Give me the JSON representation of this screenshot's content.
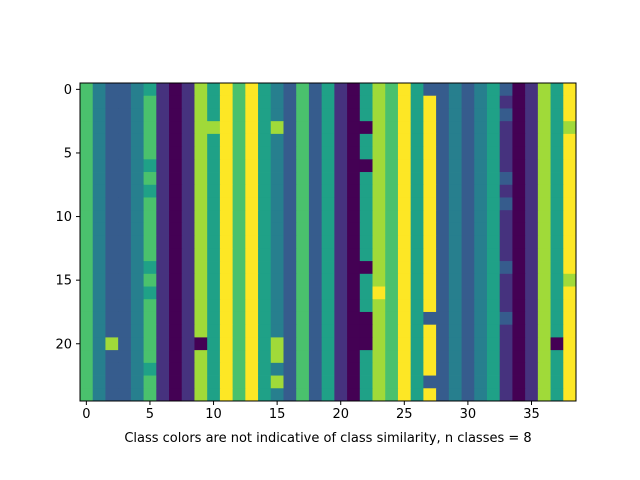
{
  "chart_data": {
    "type": "heatmap",
    "title": "",
    "xlabel": "Class colors are not indicative of class similarity, n classes = 8",
    "ylabel": "",
    "n_rows": 25,
    "n_cols": 39,
    "xlim": [
      -0.5,
      38.5
    ],
    "ylim": [
      24.5,
      -0.5
    ],
    "x_ticks": [
      0,
      5,
      10,
      15,
      20,
      25,
      30,
      35
    ],
    "y_ticks": [
      0,
      5,
      10,
      15,
      20
    ],
    "grid": false,
    "legend": "none",
    "palette": [
      "#440154",
      "#46327e",
      "#365c8d",
      "#277f8e",
      "#1fa187",
      "#4ac16d",
      "#a0da39",
      "#fde725"
    ],
    "base_columns": [
      5,
      3,
      2,
      2,
      3,
      5,
      1,
      0,
      1,
      6,
      4,
      7,
      5,
      7,
      4,
      3,
      2,
      5,
      2,
      4,
      1,
      0,
      4,
      6,
      5,
      7,
      4,
      7,
      2,
      3,
      2,
      3,
      4,
      1,
      0,
      1,
      6,
      4,
      7
    ],
    "overrides": [
      {
        "col": 2,
        "rows": [
          20
        ],
        "cls": 6
      },
      {
        "col": 5,
        "rows": [
          0,
          6,
          8,
          14,
          16,
          22
        ],
        "cls": 4
      },
      {
        "col": 9,
        "rows": [
          20
        ],
        "cls": 0
      },
      {
        "col": 10,
        "rows": [
          3
        ],
        "cls": 6
      },
      {
        "col": 15,
        "rows": [
          3,
          20,
          21,
          23
        ],
        "cls": 6
      },
      {
        "col": 22,
        "rows": [
          3,
          6,
          14,
          18,
          19,
          20
        ],
        "cls": 0
      },
      {
        "col": 23,
        "rows": [
          16
        ],
        "cls": 7
      },
      {
        "col": 27,
        "rows": [
          0,
          18,
          23
        ],
        "cls": 2
      },
      {
        "col": 32,
        "rows": [
          6,
          15
        ],
        "cls": 4
      },
      {
        "col": 33,
        "rows": [
          0,
          2,
          7,
          9,
          14,
          18
        ],
        "cls": 2
      },
      {
        "col": 37,
        "rows": [
          20
        ],
        "cls": 0
      },
      {
        "col": 38,
        "rows": [
          3,
          15
        ],
        "cls": 6
      }
    ]
  }
}
